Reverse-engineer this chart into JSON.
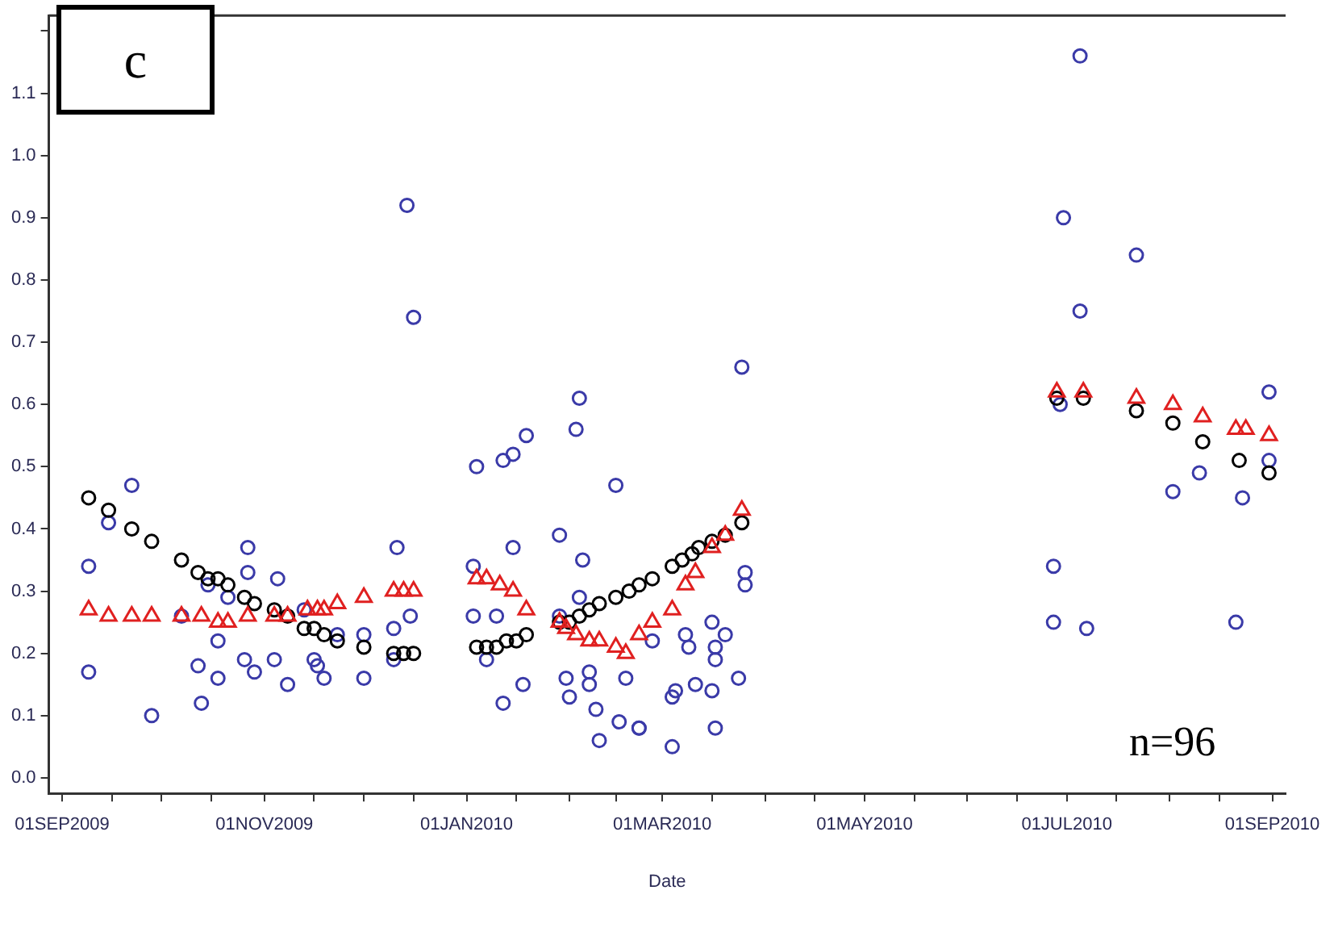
{
  "chart_data": {
    "type": "scatter",
    "xlabel": "Date",
    "annotations": [
      "c",
      "n=96"
    ],
    "xlim": [
      "2009-08-28",
      "2010-09-05"
    ],
    "xticks": [
      {
        "value": "2009-09-01",
        "label": "01SEP2009"
      },
      {
        "value": "2009-09-16",
        "label": null
      },
      {
        "value": "2009-10-01",
        "label": null
      },
      {
        "value": "2009-10-16",
        "label": null
      },
      {
        "value": "2009-11-01",
        "label": "01NOV2009"
      },
      {
        "value": "2009-11-16",
        "label": null
      },
      {
        "value": "2009-12-01",
        "label": null
      },
      {
        "value": "2009-12-16",
        "label": null
      },
      {
        "value": "2010-01-01",
        "label": "01JAN2010"
      },
      {
        "value": "2010-01-16",
        "label": null
      },
      {
        "value": "2010-02-01",
        "label": null
      },
      {
        "value": "2010-02-15",
        "label": null
      },
      {
        "value": "2010-03-01",
        "label": "01MAR2010"
      },
      {
        "value": "2010-03-16",
        "label": null
      },
      {
        "value": "2010-04-01",
        "label": null
      },
      {
        "value": "2010-04-16",
        "label": null
      },
      {
        "value": "2010-05-01",
        "label": "01MAY2010"
      },
      {
        "value": "2010-05-16",
        "label": null
      },
      {
        "value": "2010-06-01",
        "label": null
      },
      {
        "value": "2010-06-16",
        "label": null
      },
      {
        "value": "2010-07-01",
        "label": "01JUL2010"
      },
      {
        "value": "2010-07-16",
        "label": null
      },
      {
        "value": "2010-08-01",
        "label": null
      },
      {
        "value": "2010-08-16",
        "label": null
      },
      {
        "value": "2010-09-01",
        "label": "01SEP2010"
      }
    ],
    "ylim": [
      -0.025,
      1.225
    ],
    "yticks": [
      {
        "value": 0,
        "label": "0.0"
      },
      0.1,
      0.2,
      0.3,
      0.4,
      0.5,
      0.6,
      0.7,
      0.8,
      0.9,
      {
        "value": 1,
        "label": "1.0"
      },
      1.1,
      {
        "value": 1.2,
        "label": null
      }
    ],
    "series": [
      {
        "color": "#3a3aa8",
        "marker": "circle",
        "x": [
          "2009-09-09",
          "2009-09-09",
          "2009-09-15",
          "2009-09-22",
          "2009-09-28",
          "2009-10-07",
          "2009-10-12",
          "2009-10-13",
          "2009-10-15",
          "2009-10-18",
          "2009-10-18",
          "2009-10-21",
          "2009-10-26",
          "2009-10-27",
          "2009-10-27",
          "2009-10-29",
          "2009-11-04",
          "2009-11-05",
          "2009-11-08",
          "2009-11-13",
          "2009-11-16",
          "2009-11-17",
          "2009-11-19",
          "2009-11-23",
          "2009-12-01",
          "2009-12-01",
          "2009-12-10",
          "2009-12-10",
          "2009-12-11",
          "2009-12-14",
          "2009-12-15",
          "2009-12-16",
          "2010-01-03",
          "2010-01-03",
          "2010-01-04",
          "2010-01-07",
          "2010-01-10",
          "2010-01-12",
          "2010-01-12",
          "2010-01-15",
          "2010-01-15",
          "2010-01-18",
          "2010-01-19",
          "2010-01-29",
          "2010-01-29",
          "2010-01-31",
          "2010-02-01",
          "2010-02-03",
          "2010-02-04",
          "2010-02-04",
          "2010-02-05",
          "2010-02-07",
          "2010-02-07",
          "2010-02-09",
          "2010-02-10",
          "2010-02-15",
          "2010-02-16",
          "2010-02-18",
          "2010-02-22",
          "2010-02-22",
          "2010-02-26",
          "2010-03-04",
          "2010-03-04",
          "2010-03-05",
          "2010-03-08",
          "2010-03-09",
          "2010-03-11",
          "2010-03-16",
          "2010-03-16",
          "2010-03-17",
          "2010-03-17",
          "2010-03-17",
          "2010-03-20",
          "2010-03-24",
          "2010-03-25",
          "2010-03-26",
          "2010-03-26",
          "2010-06-27",
          "2010-06-27",
          "2010-06-29",
          "2010-06-30",
          "2010-07-05",
          "2010-07-05",
          "2010-07-07",
          "2010-07-22",
          "2010-08-02",
          "2010-08-10",
          "2010-08-21",
          "2010-08-23",
          "2010-08-31",
          "2010-08-31"
        ],
        "values": [
          0.34,
          0.17,
          0.41,
          0.47,
          0.1,
          0.26,
          0.18,
          0.12,
          0.31,
          0.22,
          0.16,
          0.29,
          0.19,
          0.37,
          0.33,
          0.17,
          0.19,
          0.32,
          0.15,
          0.27,
          0.19,
          0.18,
          0.16,
          0.23,
          0.23,
          0.16,
          0.24,
          0.19,
          0.37,
          0.92,
          0.26,
          0.74,
          0.34,
          0.26,
          0.5,
          0.19,
          0.26,
          0.51,
          0.12,
          0.52,
          0.37,
          0.15,
          0.55,
          0.39,
          0.26,
          0.16,
          0.13,
          0.56,
          0.61,
          0.29,
          0.35,
          0.17,
          0.15,
          0.11,
          0.06,
          0.47,
          0.09,
          0.16,
          0.08,
          0.08,
          0.22,
          0.05,
          0.13,
          0.14,
          0.23,
          0.21,
          0.15,
          0.25,
          0.14,
          0.21,
          0.19,
          0.08,
          0.23,
          0.16,
          0.66,
          0.33,
          0.31,
          0.34,
          0.25,
          0.6,
          0.9,
          1.16,
          0.75,
          0.24,
          0.84,
          0.46,
          0.49,
          0.25,
          0.45,
          0.62,
          0.51
        ]
      },
      {
        "color": "#000000",
        "marker": "circle",
        "x": [
          "2009-09-09",
          "2009-09-15",
          "2009-09-22",
          "2009-09-28",
          "2009-10-07",
          "2009-10-12",
          "2009-10-15",
          "2009-10-18",
          "2009-10-21",
          "2009-10-26",
          "2009-10-29",
          "2009-11-04",
          "2009-11-08",
          "2009-11-13",
          "2009-11-16",
          "2009-11-19",
          "2009-11-23",
          "2009-12-01",
          "2009-12-10",
          "2009-12-13",
          "2009-12-16",
          "2010-01-04",
          "2010-01-07",
          "2010-01-10",
          "2010-01-13",
          "2010-01-16",
          "2010-01-19",
          "2010-01-29",
          "2010-02-01",
          "2010-02-04",
          "2010-02-07",
          "2010-02-10",
          "2010-02-15",
          "2010-02-19",
          "2010-02-22",
          "2010-02-26",
          "2010-03-04",
          "2010-03-07",
          "2010-03-10",
          "2010-03-12",
          "2010-03-16",
          "2010-03-20",
          "2010-03-25",
          "2010-06-28",
          "2010-07-06",
          "2010-07-22",
          "2010-08-02",
          "2010-08-11",
          "2010-08-22",
          "2010-08-31"
        ],
        "values": [
          0.45,
          0.43,
          0.4,
          0.38,
          0.35,
          0.33,
          0.32,
          0.32,
          0.31,
          0.29,
          0.28,
          0.27,
          0.26,
          0.24,
          0.24,
          0.23,
          0.22,
          0.21,
          0.2,
          0.2,
          0.2,
          0.21,
          0.21,
          0.21,
          0.22,
          0.22,
          0.23,
          0.25,
          0.25,
          0.26,
          0.27,
          0.28,
          0.29,
          0.3,
          0.31,
          0.32,
          0.34,
          0.35,
          0.36,
          0.37,
          0.38,
          0.39,
          0.41,
          0.61,
          0.61,
          0.59,
          0.57,
          0.54,
          0.51,
          0.49
        ]
      },
      {
        "color": "#e02020",
        "marker": "triangle",
        "x": [
          "2009-09-09",
          "2009-09-15",
          "2009-09-22",
          "2009-09-28",
          "2009-10-07",
          "2009-10-13",
          "2009-10-18",
          "2009-10-21",
          "2009-10-27",
          "2009-11-04",
          "2009-11-08",
          "2009-11-14",
          "2009-11-17",
          "2009-11-19",
          "2009-11-23",
          "2009-12-01",
          "2009-12-10",
          "2009-12-13",
          "2009-12-16",
          "2010-01-04",
          "2010-01-07",
          "2010-01-11",
          "2010-01-15",
          "2010-01-19",
          "2010-01-29",
          "2010-01-31",
          "2010-02-03",
          "2010-02-07",
          "2010-02-10",
          "2010-02-15",
          "2010-02-18",
          "2010-02-22",
          "2010-02-26",
          "2010-03-04",
          "2010-03-08",
          "2010-03-11",
          "2010-03-16",
          "2010-03-20",
          "2010-03-25",
          "2010-06-28",
          "2010-07-06",
          "2010-07-22",
          "2010-08-02",
          "2010-08-11",
          "2010-08-21",
          "2010-08-24",
          "2010-08-31"
        ],
        "values": [
          0.27,
          0.26,
          0.26,
          0.26,
          0.26,
          0.26,
          0.25,
          0.25,
          0.26,
          0.26,
          0.26,
          0.27,
          0.27,
          0.27,
          0.28,
          0.29,
          0.3,
          0.3,
          0.3,
          0.32,
          0.32,
          0.31,
          0.3,
          0.27,
          0.25,
          0.24,
          0.23,
          0.22,
          0.22,
          0.21,
          0.2,
          0.23,
          0.25,
          0.27,
          0.31,
          0.33,
          0.37,
          0.39,
          0.43,
          0.62,
          0.62,
          0.61,
          0.6,
          0.58,
          0.56,
          0.56,
          0.55
        ]
      }
    ]
  }
}
